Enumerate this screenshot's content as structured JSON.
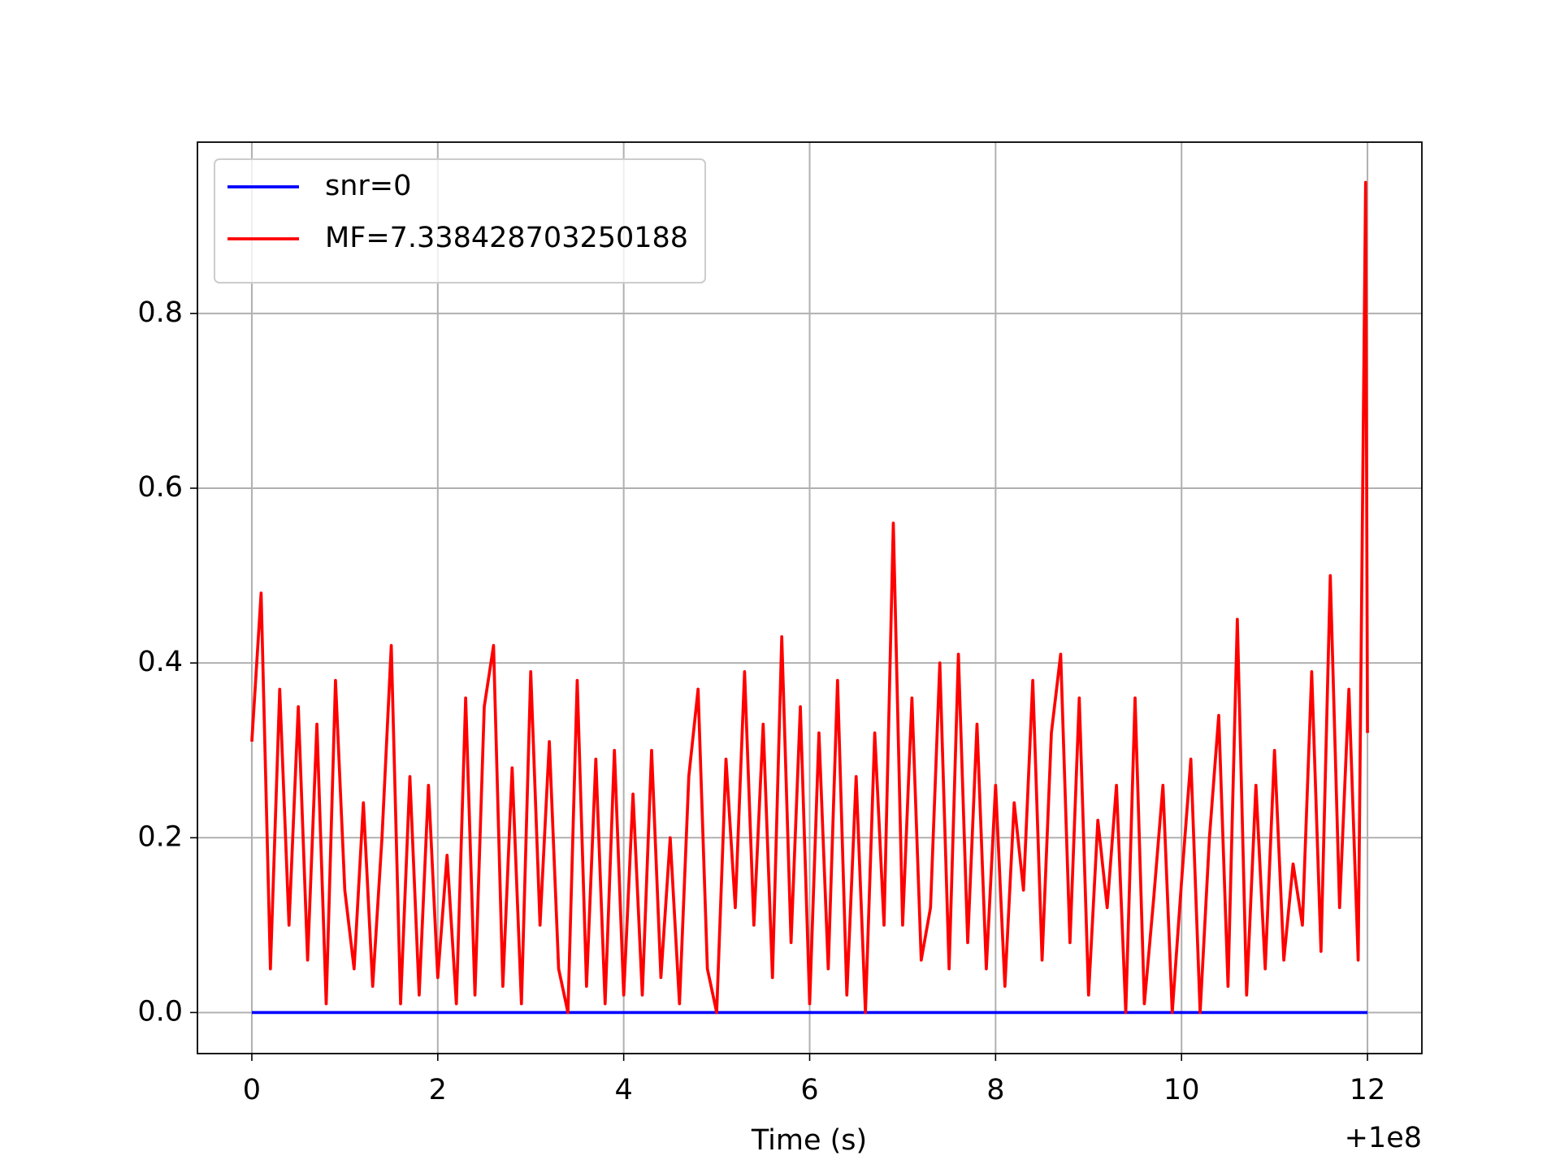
{
  "chart_data": {
    "type": "line",
    "xlabel": "Time (s)",
    "x_offset_label": "+1e8",
    "xlim": [
      -0.585,
      12.585
    ],
    "xticks": [
      0,
      2,
      4,
      6,
      8,
      10,
      12
    ],
    "ylim": [
      -0.047,
      0.996
    ],
    "yticks": [
      {
        "value": 0,
        "label": "0.0"
      },
      {
        "value": 0.2,
        "label": "0.2"
      },
      {
        "value": 0.4,
        "label": "0.4"
      },
      {
        "value": 0.6,
        "label": "0.6"
      },
      {
        "value": 0.8,
        "label": "0.8"
      }
    ],
    "grid": true,
    "legend": "upper left",
    "series": [
      {
        "name": "snr=0",
        "color": "#0000ff",
        "x": [
          0,
          12
        ],
        "values": [
          0,
          0
        ]
      },
      {
        "name": "MF=7.338428703250188",
        "color": "#ff0000",
        "x": [
          0.0,
          0.1,
          0.2,
          0.3,
          0.4,
          0.5,
          0.6,
          0.7,
          0.8,
          0.9,
          1.0,
          1.1,
          1.2,
          1.3,
          1.4,
          1.5,
          1.6,
          1.7,
          1.8,
          1.9,
          2.0,
          2.1,
          2.2,
          2.3,
          2.4,
          2.5,
          2.6,
          2.7,
          2.8,
          2.9,
          3.0,
          3.1,
          3.2,
          3.3,
          3.4,
          3.5,
          3.6,
          3.7,
          3.8,
          3.9,
          4.0,
          4.1,
          4.2,
          4.3,
          4.4,
          4.5,
          4.6,
          4.7,
          4.8,
          4.9,
          5.0,
          5.1,
          5.2,
          5.3,
          5.4,
          5.5,
          5.6,
          5.7,
          5.8,
          5.9,
          6.0,
          6.1,
          6.2,
          6.3,
          6.4,
          6.5,
          6.6,
          6.7,
          6.8,
          6.9,
          7.0,
          7.1,
          7.2,
          7.3,
          7.4,
          7.5,
          7.6,
          7.7,
          7.8,
          7.9,
          8.0,
          8.1,
          8.2,
          8.3,
          8.4,
          8.5,
          8.6,
          8.7,
          8.8,
          8.9,
          9.0,
          9.1,
          9.2,
          9.3,
          9.4,
          9.5,
          9.6,
          9.7,
          9.8,
          9.9,
          10.0,
          10.1,
          10.2,
          10.3,
          10.4,
          10.5,
          10.6,
          10.7,
          10.8,
          10.9,
          11.0,
          11.1,
          11.2,
          11.3,
          11.4,
          11.5,
          11.6,
          11.7,
          11.8,
          11.9,
          11.98,
          12.0
        ],
        "values": [
          0.31,
          0.48,
          0.05,
          0.37,
          0.1,
          0.35,
          0.06,
          0.33,
          0.01,
          0.38,
          0.14,
          0.05,
          0.24,
          0.03,
          0.2,
          0.42,
          0.01,
          0.27,
          0.02,
          0.26,
          0.04,
          0.18,
          0.01,
          0.36,
          0.02,
          0.35,
          0.42,
          0.03,
          0.28,
          0.01,
          0.39,
          0.1,
          0.31,
          0.05,
          0.0,
          0.38,
          0.03,
          0.29,
          0.01,
          0.3,
          0.02,
          0.25,
          0.02,
          0.3,
          0.04,
          0.2,
          0.01,
          0.27,
          0.37,
          0.05,
          0.0,
          0.29,
          0.12,
          0.39,
          0.1,
          0.33,
          0.04,
          0.43,
          0.08,
          0.35,
          0.01,
          0.32,
          0.05,
          0.38,
          0.02,
          0.27,
          0.0,
          0.32,
          0.1,
          0.56,
          0.1,
          0.36,
          0.06,
          0.12,
          0.4,
          0.05,
          0.41,
          0.08,
          0.33,
          0.05,
          0.26,
          0.03,
          0.24,
          0.14,
          0.38,
          0.06,
          0.32,
          0.41,
          0.08,
          0.36,
          0.02,
          0.22,
          0.12,
          0.26,
          0.0,
          0.36,
          0.01,
          0.13,
          0.26,
          0.0,
          0.15,
          0.29,
          0.0,
          0.2,
          0.34,
          0.03,
          0.45,
          0.02,
          0.26,
          0.05,
          0.3,
          0.06,
          0.17,
          0.1,
          0.39,
          0.07,
          0.5,
          0.12,
          0.37,
          0.06,
          0.95,
          0.32
        ]
      }
    ]
  }
}
